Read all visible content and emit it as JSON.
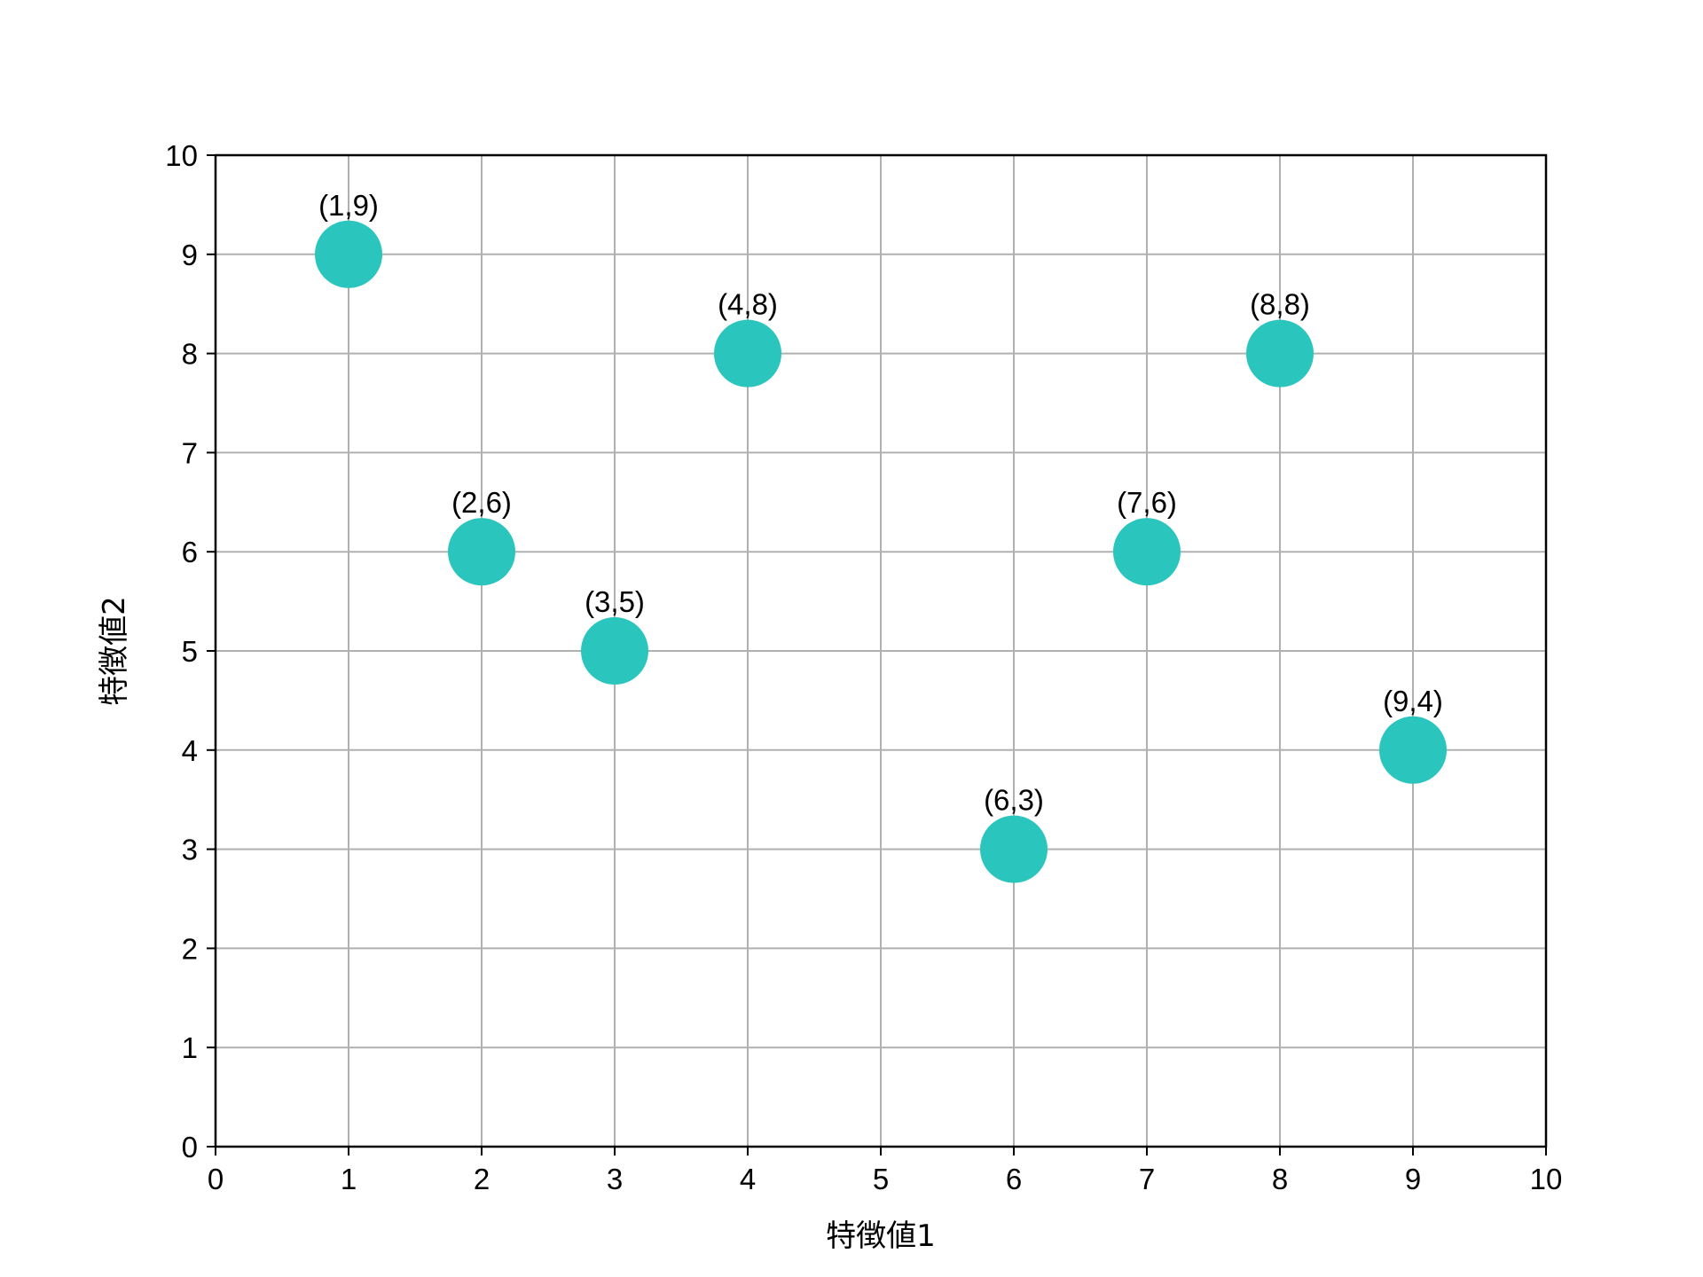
{
  "chart_data": {
    "type": "scatter",
    "title": "",
    "xlabel": "特徴値1",
    "ylabel": "特徴値2",
    "xlim": [
      0,
      10
    ],
    "ylim": [
      0,
      10
    ],
    "xticks": [
      "0",
      "1",
      "2",
      "3",
      "4",
      "5",
      "6",
      "7",
      "8",
      "9",
      "10"
    ],
    "yticks": [
      "0",
      "1",
      "2",
      "3",
      "4",
      "5",
      "6",
      "7",
      "8",
      "9",
      "10"
    ],
    "grid": true,
    "marker_color": "#2ac5bd",
    "points": [
      {
        "x": 1,
        "y": 9,
        "label": "(1,9)"
      },
      {
        "x": 2,
        "y": 6,
        "label": "(2,6)"
      },
      {
        "x": 3,
        "y": 5,
        "label": "(3,5)"
      },
      {
        "x": 4,
        "y": 8,
        "label": "(4,8)"
      },
      {
        "x": 6,
        "y": 3,
        "label": "(6,3)"
      },
      {
        "x": 7,
        "y": 6,
        "label": "(7,6)"
      },
      {
        "x": 8,
        "y": 8,
        "label": "(8,8)"
      },
      {
        "x": 9,
        "y": 4,
        "label": "(9,4)"
      }
    ]
  }
}
